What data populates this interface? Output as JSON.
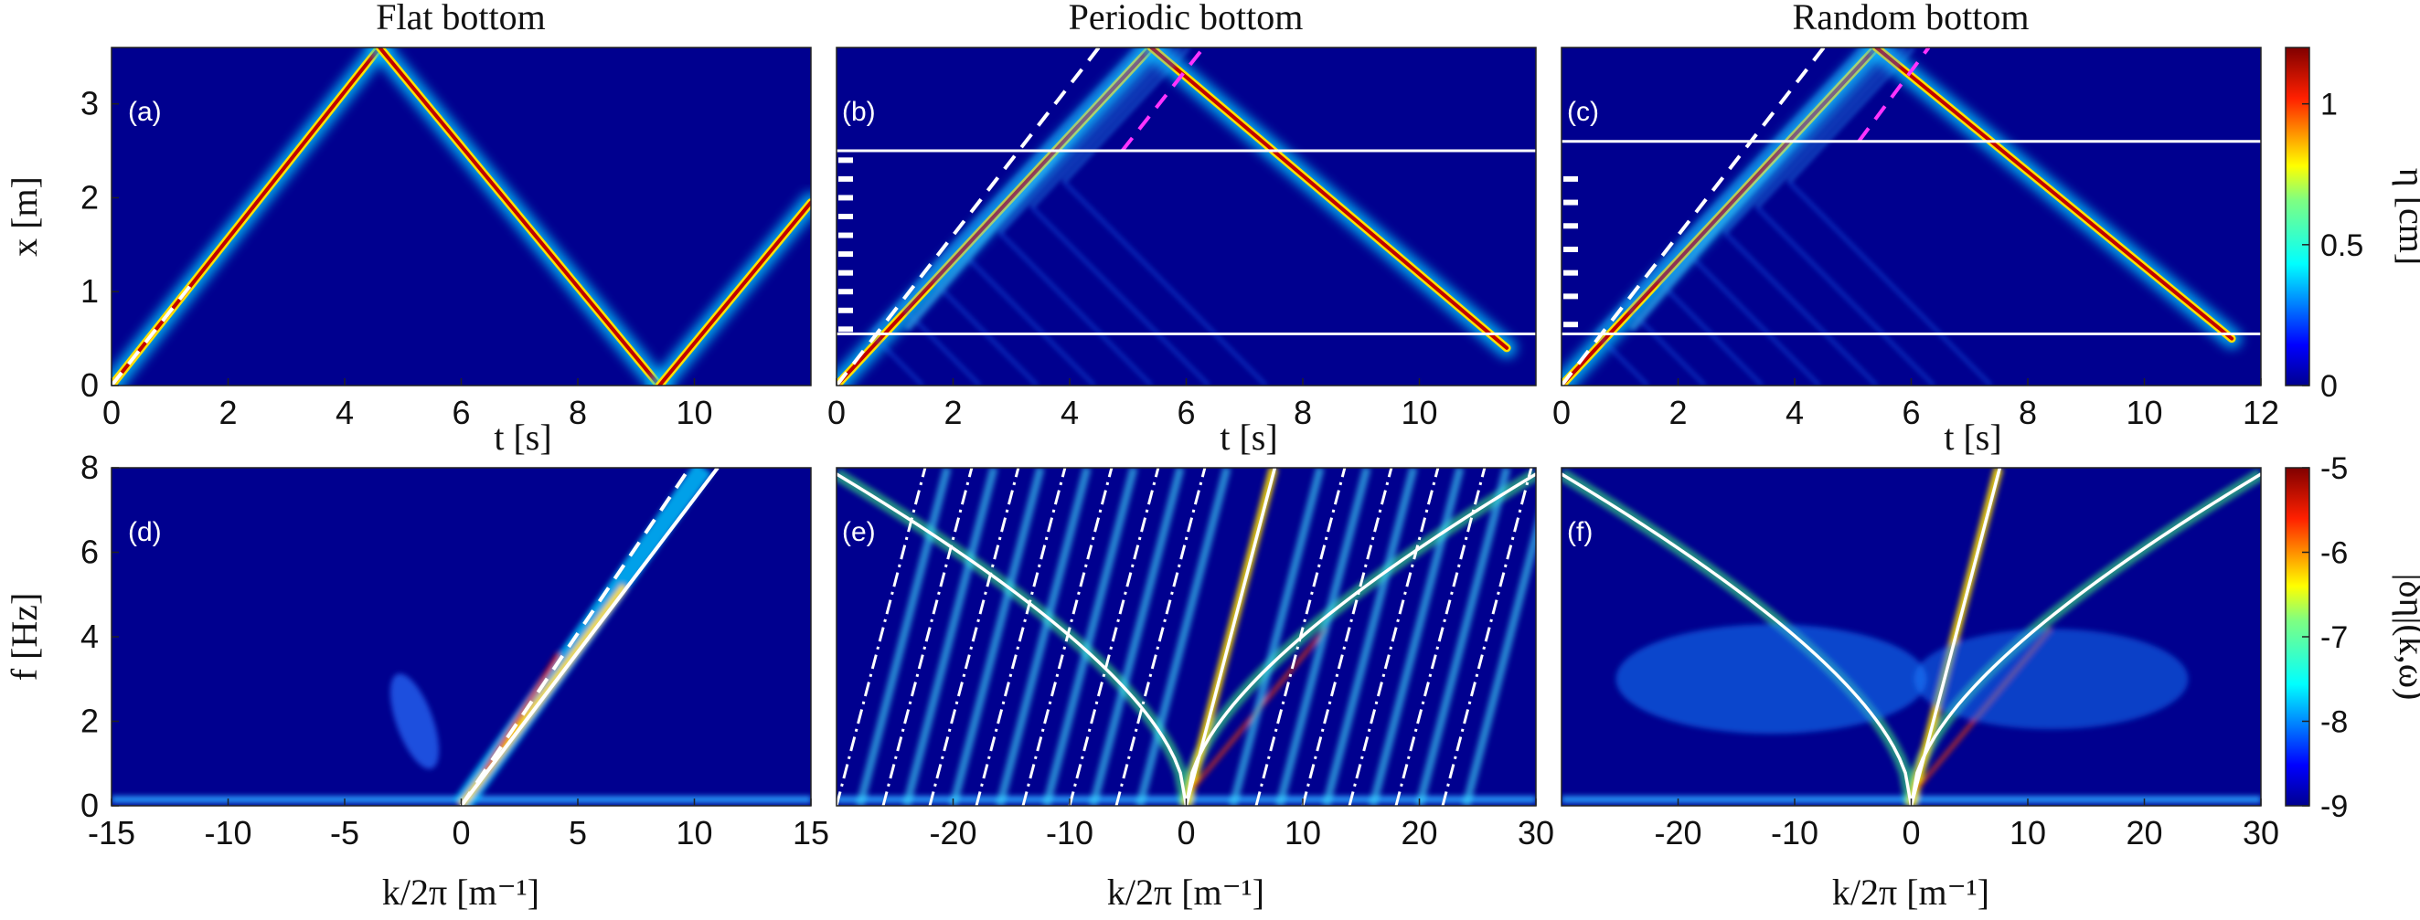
{
  "chart_data": [
    {
      "panel": "(a)",
      "type": "heatmap",
      "title": "Flat bottom",
      "xlabel": "t [s]",
      "ylabel": "x [m]",
      "xlim": [
        0,
        12
      ],
      "ylim": [
        0,
        3.6
      ],
      "xticks": [
        "0",
        "2",
        "4",
        "6",
        "8",
        "10"
      ],
      "yticks": [
        "0",
        "1",
        "2",
        "3"
      ],
      "ridges": [
        {
          "name": "incident",
          "points": [
            [
              0,
              0
            ],
            [
              4.6,
              3.6
            ]
          ]
        },
        {
          "name": "reflected",
          "points": [
            [
              4.6,
              3.6
            ],
            [
              9.4,
              0
            ]
          ]
        },
        {
          "name": "re-reflected",
          "points": [
            [
              9.4,
              0
            ],
            [
              12,
              1.95
            ]
          ]
        }
      ],
      "dashed_lines": [
        {
          "color": "#ffffff",
          "points": [
            [
              0,
              0
            ],
            [
              1.4,
              1.1
            ]
          ]
        }
      ]
    },
    {
      "panel": "(b)",
      "type": "heatmap",
      "title": "Periodic bottom",
      "xlabel": "t [s]",
      "xlim": [
        0,
        12
      ],
      "ylim": [
        0,
        3.6
      ],
      "xticks": [
        "0",
        "2",
        "4",
        "6",
        "8",
        "10"
      ],
      "ridges": [
        {
          "name": "incident",
          "points": [
            [
              0,
              0
            ],
            [
              5.4,
              3.6
            ]
          ]
        },
        {
          "name": "reflected",
          "points": [
            [
              5.4,
              3.6
            ],
            [
              11.5,
              0.4
            ]
          ]
        }
      ],
      "dashed_lines": [
        {
          "color": "#ffffff",
          "points": [
            [
              0,
              0
            ],
            [
              4.5,
              3.6
            ]
          ]
        },
        {
          "color": "#ff33ff",
          "points": [
            [
              4.9,
              2.5
            ],
            [
              6.3,
              3.6
            ]
          ]
        }
      ],
      "region_lines_x": [
        0.55,
        2.5
      ],
      "bar_markers_x": [
        0.6,
        0.8,
        1.0,
        1.2,
        1.4,
        1.6,
        1.8,
        2.0,
        2.2,
        2.4
      ]
    },
    {
      "panel": "(c)",
      "type": "heatmap",
      "title": "Random bottom",
      "xlabel": "t [s]",
      "xlim": [
        0,
        12
      ],
      "ylim": [
        0,
        3.6
      ],
      "xticks": [
        "0",
        "2",
        "4",
        "6",
        "8",
        "10",
        "12"
      ],
      "ridges": [
        {
          "name": "incident",
          "points": [
            [
              0,
              0
            ],
            [
              5.4,
              3.6
            ]
          ]
        },
        {
          "name": "reflected",
          "points": [
            [
              5.4,
              3.6
            ],
            [
              11.5,
              0.5
            ]
          ]
        }
      ],
      "dashed_lines": [
        {
          "color": "#ffffff",
          "points": [
            [
              0,
              0
            ],
            [
              4.5,
              3.6
            ]
          ]
        },
        {
          "color": "#ff33ff",
          "points": [
            [
              5.1,
              2.6
            ],
            [
              6.3,
              3.6
            ]
          ]
        }
      ],
      "region_lines_x": [
        0.55,
        2.6
      ],
      "bar_markers_x": [
        0.65,
        0.95,
        1.2,
        1.45,
        1.7,
        1.95,
        2.2
      ]
    },
    {
      "panel": "(d)",
      "type": "heatmap",
      "xlabel": "k/2π [m⁻¹]",
      "ylabel": "f [Hz]",
      "xlim": [
        -15,
        15
      ],
      "ylim": [
        0,
        8
      ],
      "xticks": [
        "-15",
        "-10",
        "-5",
        "0",
        "5",
        "10",
        "15"
      ],
      "yticks": [
        "0",
        "2",
        "4",
        "6",
        "8"
      ],
      "lines": [
        {
          "style": "solid",
          "color": "#ffffff",
          "points": [
            [
              0,
              0
            ],
            [
              11,
              8
            ]
          ]
        },
        {
          "style": "dashed",
          "color": "#ffffff",
          "points": [
            [
              0,
              0
            ],
            [
              9.8,
              8
            ]
          ]
        }
      ]
    },
    {
      "panel": "(e)",
      "type": "heatmap",
      "xlabel": "k/2π [m⁻¹]",
      "xlim": [
        -30,
        30
      ],
      "ylim": [
        0,
        8
      ],
      "xticks": [
        "-20",
        "-10",
        "0",
        "10",
        "20",
        "30"
      ],
      "dispersion_curves": "gravity-capillary branches (solid white) for k<0 and k>0, shallow-water line (solid) and Bragg-shifted copies (dash-dot)",
      "bragg_shift_spacing": 4
    },
    {
      "panel": "(f)",
      "type": "heatmap",
      "xlabel": "k/2π [m⁻¹]",
      "xlim": [
        -30,
        30
      ],
      "ylim": [
        0,
        8
      ],
      "xticks": [
        "-20",
        "-10",
        "0",
        "10",
        "20",
        "30"
      ],
      "dispersion_curves": "gravity-capillary branches (solid white) for k<0 and k>0, shallow-water line (solid)"
    }
  ],
  "colorbars": [
    {
      "label": "η [cm]",
      "ticks": [
        "1",
        "0.5",
        "0"
      ],
      "range": [
        0,
        1.2
      ]
    },
    {
      "label": "|δη̂|(k,ω)",
      "ticks": [
        "-5",
        "-6",
        "-7",
        "-8",
        "-9"
      ],
      "range": [
        -9,
        -5
      ]
    }
  ],
  "colors": {
    "low": "#00008f",
    "mid": "#00ffff",
    "high": "#ff2000",
    "top": "#800000"
  }
}
